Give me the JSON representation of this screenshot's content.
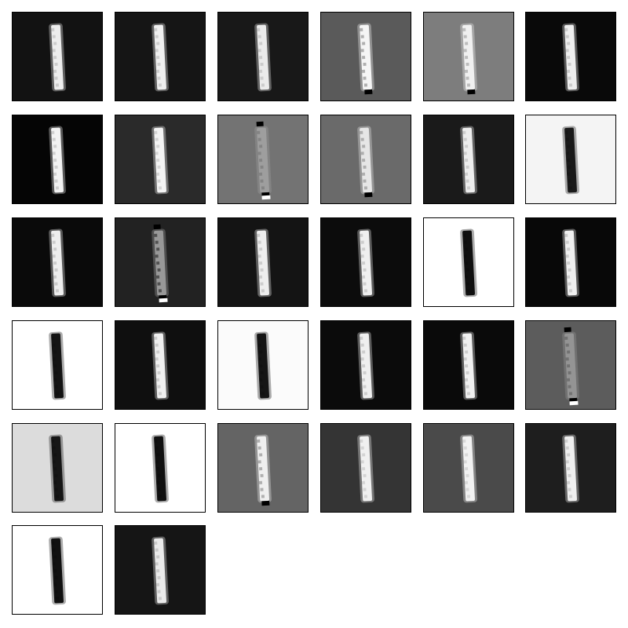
{
  "figure": {
    "rows": 6,
    "cols": 6,
    "panel_count": 32,
    "panels": [
      {
        "bg": "#121212",
        "fg": "#ededed",
        "variant": "bright"
      },
      {
        "bg": "#151515",
        "fg": "#efefef",
        "variant": "bright"
      },
      {
        "bg": "#181818",
        "fg": "#ebebeb",
        "variant": "bright"
      },
      {
        "bg": "#5a5a5a",
        "fg": "#f5f5f5",
        "variant": "edge"
      },
      {
        "bg": "#7d7d7d",
        "fg": "#f0f0f0",
        "variant": "edge"
      },
      {
        "bg": "#090909",
        "fg": "#eeeeee",
        "variant": "bright"
      },
      {
        "bg": "#050505",
        "fg": "#f2f2f2",
        "variant": "bright"
      },
      {
        "bg": "#2a2a2a",
        "fg": "#f3f3f3",
        "variant": "bright"
      },
      {
        "bg": "#737373",
        "fg": "#b5b5b5",
        "variant": "noisy"
      },
      {
        "bg": "#6a6a6a",
        "fg": "#e6e6e6",
        "variant": "edge"
      },
      {
        "bg": "#1a1a1a",
        "fg": "#ededed",
        "variant": "bright"
      },
      {
        "bg": "#f4f4f4",
        "fg": "#1a1a1a",
        "variant": "dark"
      },
      {
        "bg": "#0a0a0a",
        "fg": "#eeeeee",
        "variant": "bright"
      },
      {
        "bg": "#222222",
        "fg": "#d6d6d6",
        "variant": "noisy"
      },
      {
        "bg": "#141414",
        "fg": "#eeeeee",
        "variant": "bright"
      },
      {
        "bg": "#0c0c0c",
        "fg": "#efefef",
        "variant": "bright"
      },
      {
        "bg": "#ffffff",
        "fg": "#101010",
        "variant": "dark"
      },
      {
        "bg": "#080808",
        "fg": "#efefef",
        "variant": "bright"
      },
      {
        "bg": "#ffffff",
        "fg": "#141414",
        "variant": "dark"
      },
      {
        "bg": "#0f0f0f",
        "fg": "#efefef",
        "variant": "bright"
      },
      {
        "bg": "#fbfbfb",
        "fg": "#151515",
        "variant": "dark"
      },
      {
        "bg": "#0b0b0b",
        "fg": "#efefef",
        "variant": "bright"
      },
      {
        "bg": "#0a0a0a",
        "fg": "#f0f0f0",
        "variant": "bright"
      },
      {
        "bg": "#5c5c5c",
        "fg": "#b0b0b0",
        "variant": "noisy"
      },
      {
        "bg": "#dcdcdc",
        "fg": "#161616",
        "variant": "dark"
      },
      {
        "bg": "#ffffff",
        "fg": "#111111",
        "variant": "dark"
      },
      {
        "bg": "#646464",
        "fg": "#efefef",
        "variant": "edge"
      },
      {
        "bg": "#343434",
        "fg": "#f0f0f0",
        "variant": "bright"
      },
      {
        "bg": "#4a4a4a",
        "fg": "#f1f1f1",
        "variant": "bright"
      },
      {
        "bg": "#1e1e1e",
        "fg": "#efefef",
        "variant": "bright"
      },
      {
        "bg": "#ffffff",
        "fg": "#111111",
        "variant": "dark"
      },
      {
        "bg": "#151515",
        "fg": "#eaeaea",
        "variant": "bright"
      }
    ]
  }
}
